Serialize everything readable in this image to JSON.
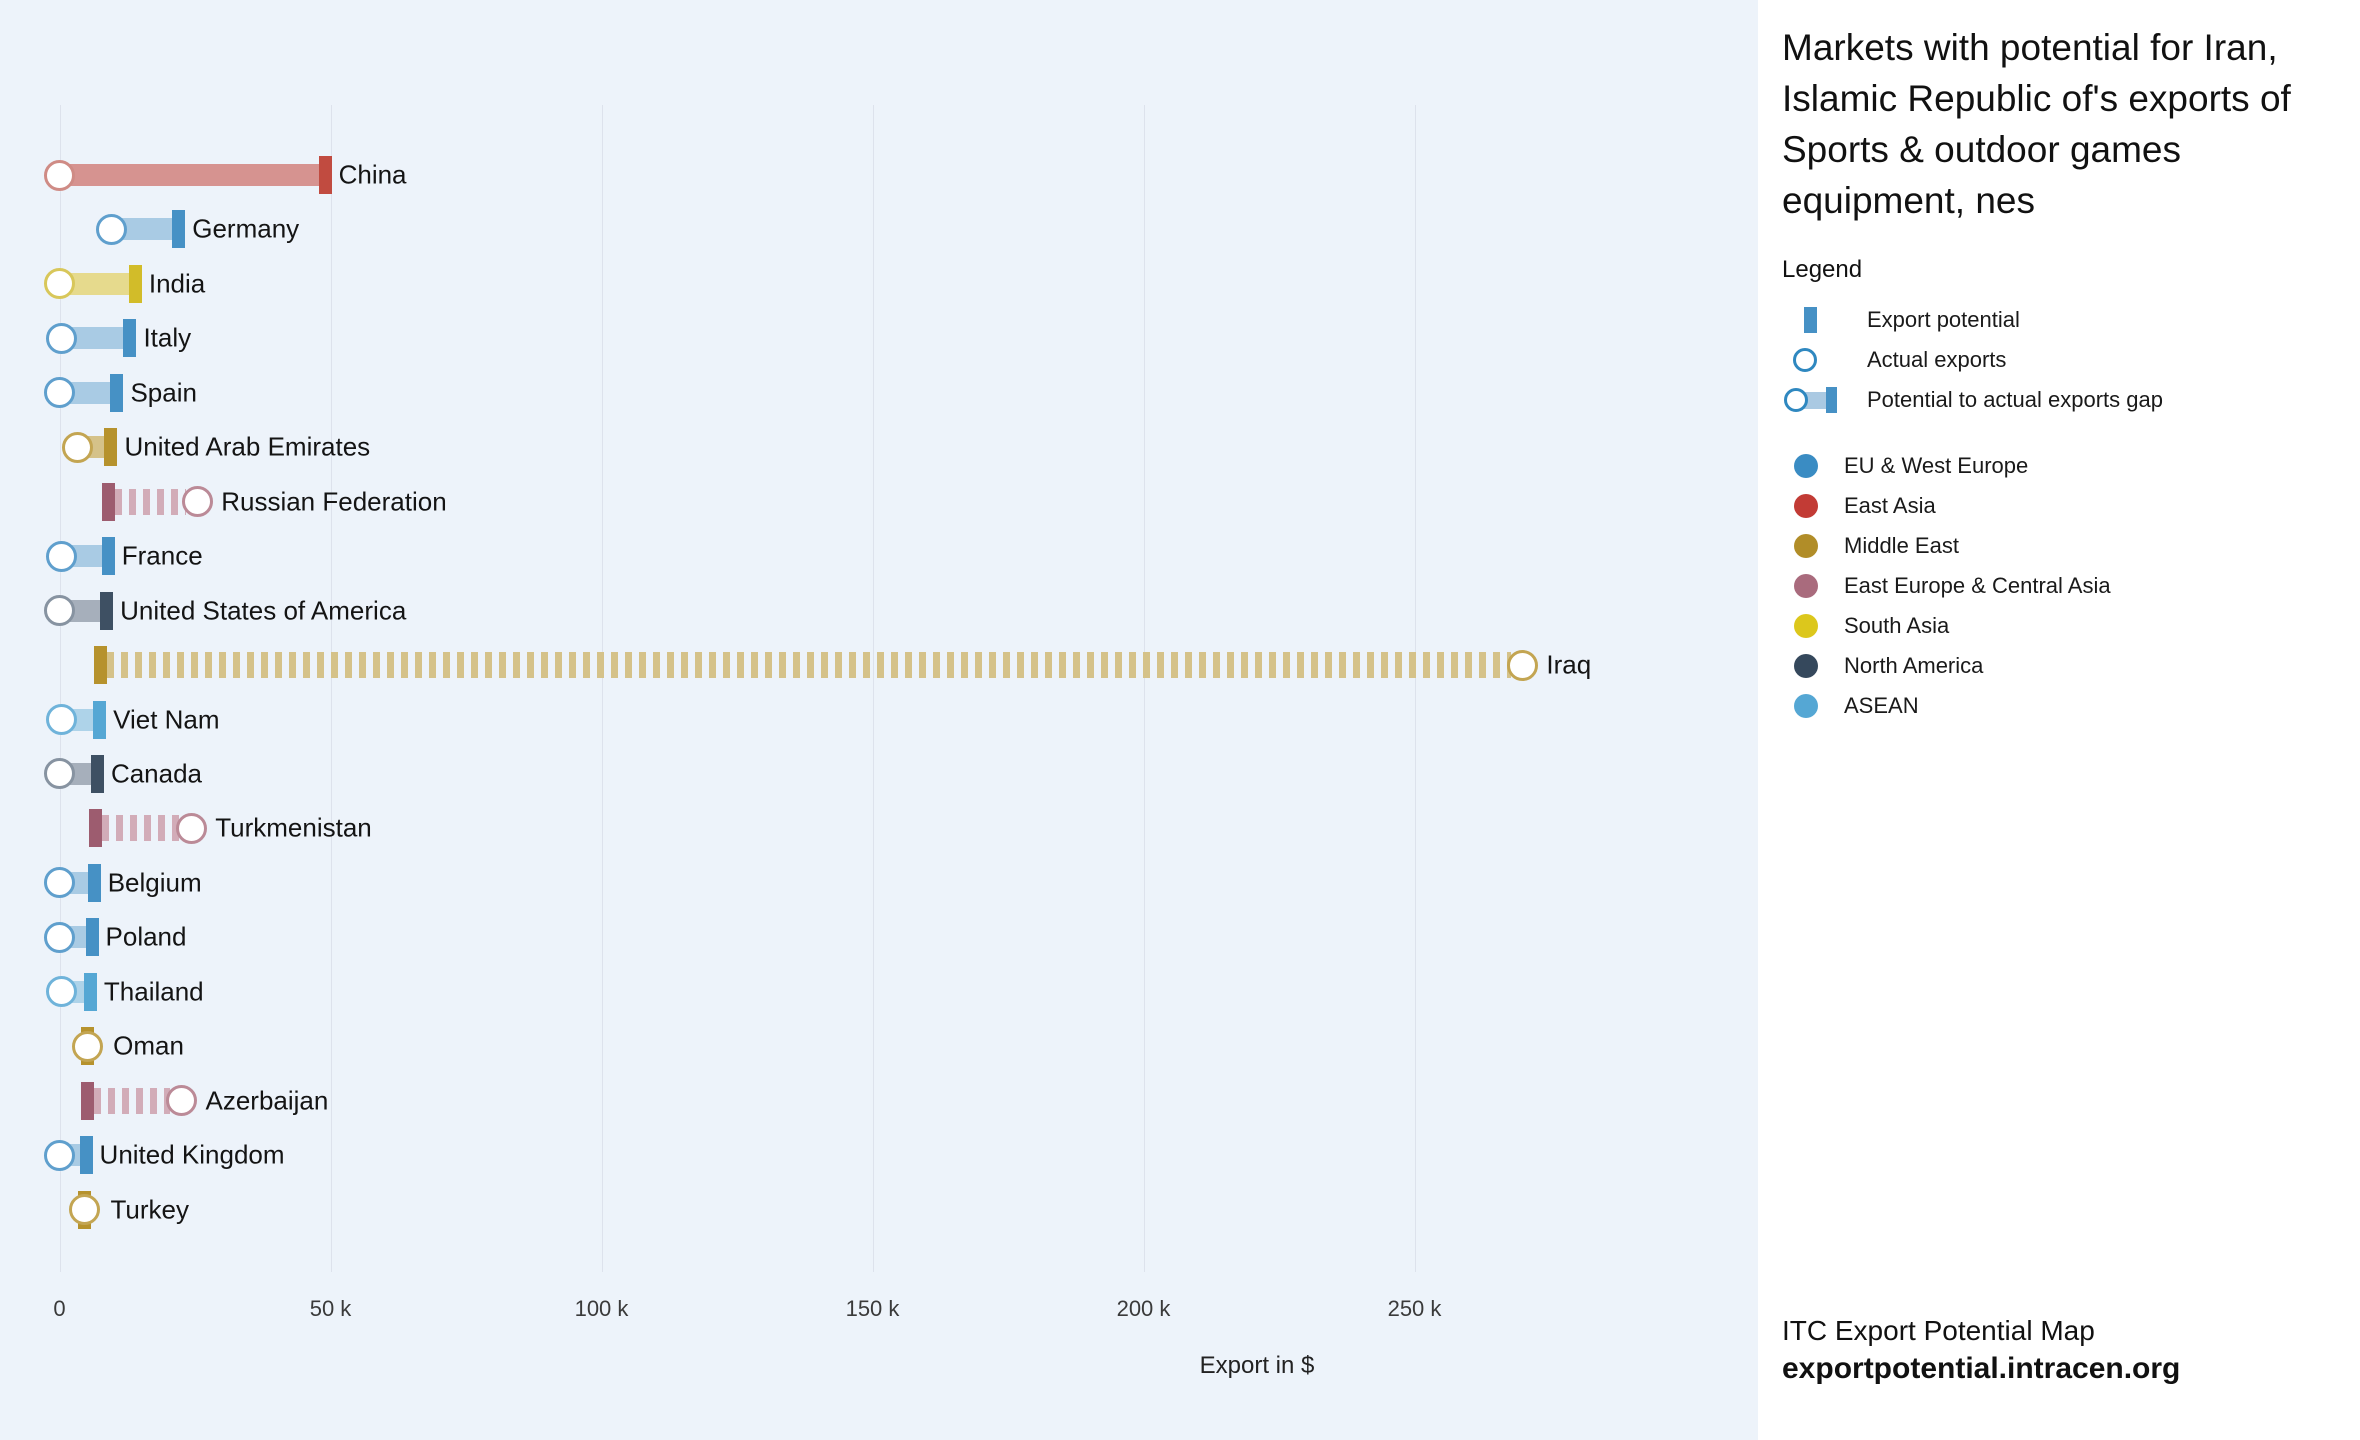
{
  "panel": {
    "title": "Markets with potential for Iran, Islamic Republic of's exports of Sports & outdoor games equipment, nes",
    "legend_label": "Legend",
    "symbol_legend": [
      {
        "name": "export-potential",
        "label": "Export potential"
      },
      {
        "name": "actual-exports",
        "label": "Actual exports"
      },
      {
        "name": "potential-to-actual-gap",
        "label": "Potential to actual exports gap"
      }
    ],
    "region_legend": [
      {
        "label": "EU & West Europe",
        "color": "#3a8cc3"
      },
      {
        "label": "East Asia",
        "color": "#c23b35"
      },
      {
        "label": "Middle East",
        "color": "#b18d28"
      },
      {
        "label": "East Europe & Central Asia",
        "color": "#a96b7d"
      },
      {
        "label": "South Asia",
        "color": "#dcc71c"
      },
      {
        "label": "North America",
        "color": "#35485c"
      },
      {
        "label": "ASEAN",
        "color": "#55a7d4"
      }
    ],
    "footer_line1": "ITC Export Potential Map",
    "footer_line2": "exportpotential.intracen.org"
  },
  "colors": {
    "background": "#edf3fa",
    "panel_background": "#ffffff",
    "gridline": "#dde2ec",
    "regions": {
      "EU & West Europe": {
        "marker": "#4691c5",
        "bar": "#a9cbe4",
        "stroke": "#5f9fcd"
      },
      "East Asia": {
        "marker": "#c14b40",
        "bar": "#d69390",
        "stroke": "#cf8b85"
      },
      "Middle East": {
        "marker": "#b6922d",
        "bar": "#d5c289",
        "stroke": "#c3a552"
      },
      "East Europe & Central Asia": {
        "marker": "#9d5c6f",
        "bar": "#d2acb8",
        "stroke": "#bb8a97"
      },
      "South Asia": {
        "marker": "#d2bc29",
        "bar": "#e6da8d",
        "stroke": "#d8c75a"
      },
      "North America": {
        "marker": "#3e5063",
        "bar": "#a6afbb",
        "stroke": "#8793a1"
      },
      "ASEAN": {
        "marker": "#55a7d4",
        "bar": "#aed3e9",
        "stroke": "#6fb3da"
      }
    }
  },
  "chart_data": {
    "type": "bar",
    "title": "Markets with potential for Iran, Islamic Republic of's exports of Sports & outdoor games equipment, nes",
    "xlabel": "Export in $",
    "xlim": [
      0,
      313000
    ],
    "grid": true,
    "x_ticks": [
      {
        "value": 0,
        "label": "0"
      },
      {
        "value": 50000,
        "label": "50 k"
      },
      {
        "value": 100000,
        "label": "100 k"
      },
      {
        "value": 150000,
        "label": "150 k"
      },
      {
        "value": 200000,
        "label": "200 k"
      },
      {
        "value": 250000,
        "label": "250 k"
      }
    ],
    "series_legend": [
      "Export potential",
      "Actual exports",
      "Potential to actual exports gap"
    ],
    "series": [
      {
        "market": "China",
        "region": "East Asia",
        "actual_exports": 0,
        "export_potential": 49000,
        "style": "solid"
      },
      {
        "market": "Germany",
        "region": "EU & West Europe",
        "actual_exports": 9600,
        "export_potential": 22000,
        "style": "solid"
      },
      {
        "market": "India",
        "region": "South Asia",
        "actual_exports": 0,
        "export_potential": 14000,
        "style": "solid"
      },
      {
        "market": "Italy",
        "region": "EU & West Europe",
        "actual_exports": 400,
        "export_potential": 13000,
        "style": "solid"
      },
      {
        "market": "Spain",
        "region": "EU & West Europe",
        "actual_exports": 0,
        "export_potential": 10600,
        "style": "solid"
      },
      {
        "market": "United Arab Emirates",
        "region": "Middle East",
        "actual_exports": 3300,
        "export_potential": 9500,
        "style": "solid"
      },
      {
        "market": "Russian Federation",
        "region": "East Europe & Central Asia",
        "actual_exports": 25500,
        "export_potential": 9000,
        "style": "dashed"
      },
      {
        "market": "France",
        "region": "EU & West Europe",
        "actual_exports": 400,
        "export_potential": 9000,
        "style": "solid"
      },
      {
        "market": "United States of America",
        "region": "North America",
        "actual_exports": 0,
        "export_potential": 8700,
        "style": "solid"
      },
      {
        "market": "Iraq",
        "region": "Middle East",
        "actual_exports": 270000,
        "export_potential": 7500,
        "style": "dashed"
      },
      {
        "market": "Viet Nam",
        "region": "ASEAN",
        "actual_exports": 400,
        "export_potential": 7400,
        "style": "solid"
      },
      {
        "market": "Canada",
        "region": "North America",
        "actual_exports": 0,
        "export_potential": 7000,
        "style": "solid"
      },
      {
        "market": "Turkmenistan",
        "region": "East Europe & Central Asia",
        "actual_exports": 24400,
        "export_potential": 6600,
        "style": "dashed"
      },
      {
        "market": "Belgium",
        "region": "EU & West Europe",
        "actual_exports": 0,
        "export_potential": 6400,
        "style": "solid"
      },
      {
        "market": "Poland",
        "region": "EU & West Europe",
        "actual_exports": 0,
        "export_potential": 6000,
        "style": "solid"
      },
      {
        "market": "Thailand",
        "region": "ASEAN",
        "actual_exports": 400,
        "export_potential": 5700,
        "style": "solid"
      },
      {
        "market": "Oman",
        "region": "Middle East",
        "actual_exports": 5200,
        "export_potential": 5200,
        "style": "point"
      },
      {
        "market": "Azerbaijan",
        "region": "East Europe & Central Asia",
        "actual_exports": 22600,
        "export_potential": 5200,
        "style": "dashed"
      },
      {
        "market": "United Kingdom",
        "region": "EU & West Europe",
        "actual_exports": 0,
        "export_potential": 4900,
        "style": "solid"
      },
      {
        "market": "Turkey",
        "region": "Middle East",
        "actual_exports": 4700,
        "export_potential": 4700,
        "style": "point"
      }
    ]
  }
}
